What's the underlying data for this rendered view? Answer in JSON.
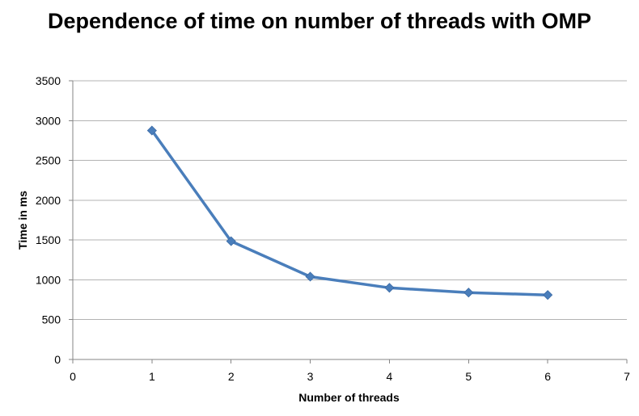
{
  "chart_data": {
    "type": "line",
    "title": "Dependence of time on number of threads with OMP",
    "xlabel": "Number of threads",
    "ylabel": "Time in ms",
    "xlim": [
      0,
      7
    ],
    "ylim": [
      0,
      3500
    ],
    "x_ticks": [
      0,
      1,
      2,
      3,
      4,
      5,
      6,
      7
    ],
    "y_ticks": [
      0,
      500,
      1000,
      1500,
      2000,
      2500,
      3000,
      3500
    ],
    "grid": "horizontal",
    "legend": "none",
    "series": [
      {
        "x": [
          1,
          2,
          3,
          4,
          5,
          6
        ],
        "values": [
          2875,
          1485,
          1040,
          900,
          840,
          810
        ],
        "color": "#4a7ebb",
        "marker": "diamond"
      }
    ],
    "colors": {
      "gridline": "#b3b3b3",
      "axis": "#868686"
    }
  }
}
